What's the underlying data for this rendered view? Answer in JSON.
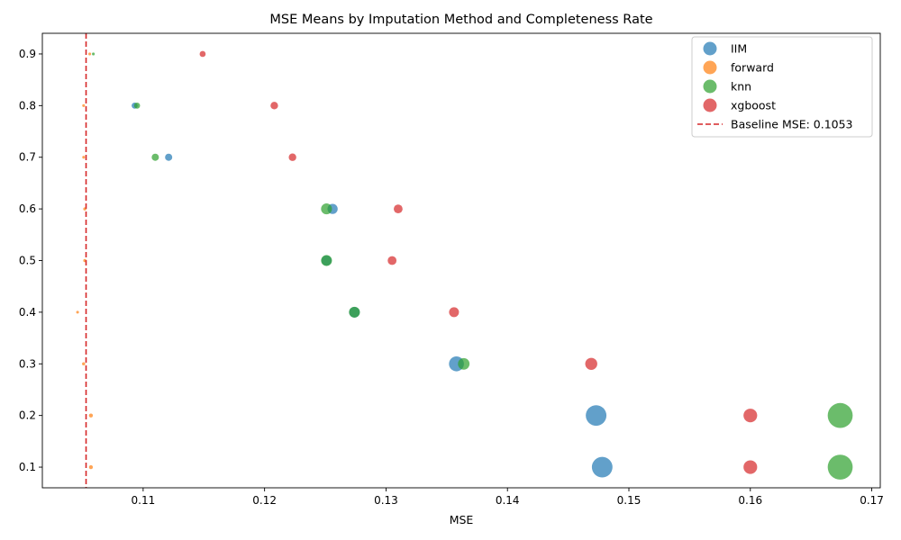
{
  "chart_data": {
    "type": "scatter",
    "title": "MSE Means by Imputation Method and Completeness Rate",
    "xlabel": "MSE",
    "ylabel": "",
    "xlim": [
      0.1017,
      0.1707
    ],
    "ylim": [
      0.06,
      0.94
    ],
    "xticks": [
      0.11,
      0.12,
      0.13,
      0.14,
      0.15,
      0.16,
      0.17
    ],
    "yticks": [
      0.1,
      0.2,
      0.3,
      0.4,
      0.5,
      0.6,
      0.7,
      0.8,
      0.9
    ],
    "grid": false,
    "legend_position": "top-right",
    "baseline": {
      "value": 0.1053,
      "label": "Baseline MSE: 0.1053",
      "color": "#d62728"
    },
    "series": [
      {
        "name": "IIM",
        "color": "#1f77b4",
        "points": [
          {
            "x": 0.1093,
            "y": 0.8,
            "size": 0.7
          },
          {
            "x": 0.1121,
            "y": 0.7,
            "size": 1.0
          },
          {
            "x": 0.1256,
            "y": 0.6,
            "size": 2.0
          },
          {
            "x": 0.1251,
            "y": 0.5,
            "size": 2.0
          },
          {
            "x": 0.1274,
            "y": 0.4,
            "size": 2.2
          },
          {
            "x": 0.1358,
            "y": 0.3,
            "size": 4.3
          },
          {
            "x": 0.1473,
            "y": 0.2,
            "size": 8.2
          },
          {
            "x": 0.1478,
            "y": 0.1,
            "size": 8.2
          }
        ]
      },
      {
        "name": "forward",
        "color": "#ff7f0e",
        "points": [
          {
            "x": 0.1056,
            "y": 0.9,
            "size": 0.15
          },
          {
            "x": 0.1051,
            "y": 0.8,
            "size": 0.15
          },
          {
            "x": 0.1051,
            "y": 0.7,
            "size": 0.15
          },
          {
            "x": 0.1052,
            "y": 0.6,
            "size": 0.2
          },
          {
            "x": 0.1052,
            "y": 0.5,
            "size": 0.2
          },
          {
            "x": 0.1046,
            "y": 0.4,
            "size": 0.15
          },
          {
            "x": 0.1051,
            "y": 0.3,
            "size": 0.2
          },
          {
            "x": 0.1057,
            "y": 0.2,
            "size": 0.3
          },
          {
            "x": 0.1057,
            "y": 0.1,
            "size": 0.3
          }
        ]
      },
      {
        "name": "knn",
        "color": "#2ca02c",
        "points": [
          {
            "x": 0.1059,
            "y": 0.9,
            "size": 0.15
          },
          {
            "x": 0.1095,
            "y": 0.8,
            "size": 0.7
          },
          {
            "x": 0.111,
            "y": 0.7,
            "size": 1.0
          },
          {
            "x": 0.1251,
            "y": 0.6,
            "size": 2.3
          },
          {
            "x": 0.1251,
            "y": 0.5,
            "size": 2.3
          },
          {
            "x": 0.1274,
            "y": 0.4,
            "size": 2.3
          },
          {
            "x": 0.1364,
            "y": 0.3,
            "size": 2.6
          },
          {
            "x": 0.1674,
            "y": 0.2,
            "size": 12.0
          },
          {
            "x": 0.1674,
            "y": 0.1,
            "size": 12.0
          }
        ]
      },
      {
        "name": "xgboost",
        "color": "#d62728",
        "points": [
          {
            "x": 0.1149,
            "y": 0.9,
            "size": 0.7
          },
          {
            "x": 0.1208,
            "y": 0.8,
            "size": 1.1
          },
          {
            "x": 0.1223,
            "y": 0.7,
            "size": 1.1
          },
          {
            "x": 0.131,
            "y": 0.6,
            "size": 1.5
          },
          {
            "x": 0.1305,
            "y": 0.5,
            "size": 1.5
          },
          {
            "x": 0.1356,
            "y": 0.4,
            "size": 1.9
          },
          {
            "x": 0.1469,
            "y": 0.3,
            "size": 2.8
          },
          {
            "x": 0.16,
            "y": 0.2,
            "size": 3.6
          },
          {
            "x": 0.16,
            "y": 0.1,
            "size": 3.6
          }
        ]
      }
    ]
  }
}
